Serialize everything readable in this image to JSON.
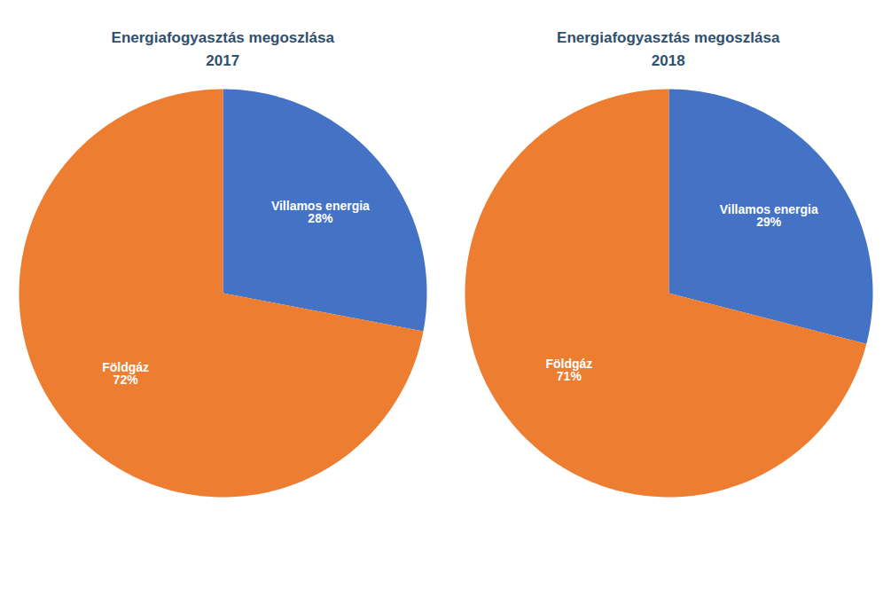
{
  "chart_data": [
    {
      "type": "pie",
      "title": "Energiafogyasztás megoszlása\n2017",
      "categories": [
        "Villamos energia",
        "Földgáz"
      ],
      "values": [
        28,
        72
      ],
      "value_labels": [
        "28%",
        "72%"
      ],
      "colors": [
        "#4472C4",
        "#ED7D31"
      ],
      "data_labels": true
    },
    {
      "type": "pie",
      "title": "Energiafogyasztás megoszlása\n2018",
      "categories": [
        "Villamos energia",
        "Földgáz"
      ],
      "values": [
        29,
        71
      ],
      "value_labels": [
        "29%",
        "71%"
      ],
      "colors": [
        "#4472C4",
        "#ED7D31"
      ],
      "data_labels": true
    }
  ]
}
